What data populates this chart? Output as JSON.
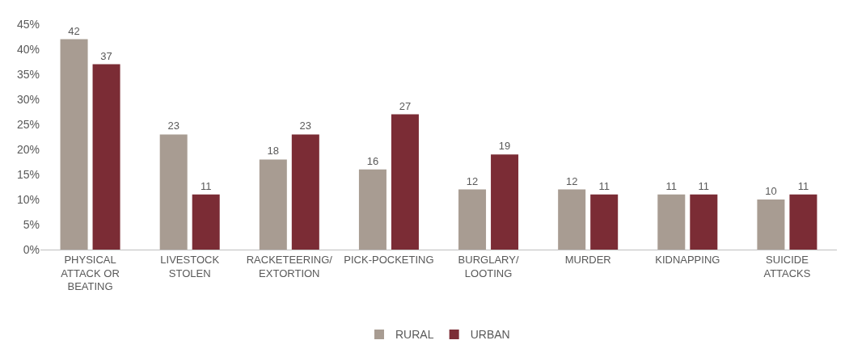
{
  "chart_data": {
    "type": "bar",
    "categories": [
      "PHYSICAL ATTACK OR BEATING",
      "LIVESTOCK STOLEN",
      "RACKETEERING/ EXTORTION",
      "PICK-POCKETING",
      "BURGLARY/ LOOTING",
      "MURDER",
      "KIDNAPPING",
      "SUICIDE ATTACKS"
    ],
    "series": [
      {
        "name": "RURAL",
        "color": "#a89c92",
        "values": [
          42,
          23,
          18,
          16,
          12,
          12,
          11,
          10
        ]
      },
      {
        "name": "URBAN",
        "color": "#7b2c35",
        "values": [
          37,
          11,
          23,
          27,
          19,
          11,
          11,
          11
        ]
      }
    ],
    "ylim": [
      0,
      45
    ],
    "yticks": [
      {
        "value": 0,
        "label": "0%"
      },
      {
        "value": 5,
        "label": "5%"
      },
      {
        "value": 10,
        "label": "10%"
      },
      {
        "value": 15,
        "label": "15%"
      },
      {
        "value": 20,
        "label": "20%"
      },
      {
        "value": 25,
        "label": "25%"
      },
      {
        "value": 30,
        "label": "30%"
      },
      {
        "value": 35,
        "label": "35%"
      },
      {
        "value": 40,
        "label": "40%"
      },
      {
        "value": 45,
        "label": "45%"
      }
    ],
    "grid": false,
    "legend": "bottom",
    "data_labels": true
  }
}
